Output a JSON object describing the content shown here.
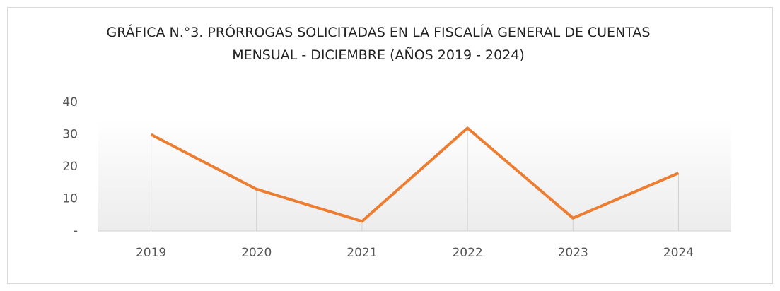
{
  "chart_data": {
    "type": "line",
    "title": "GRÁFICA N.°3. PRÓRROGAS SOLICITADAS EN LA FISCALÍA GENERAL DE CUENTAS",
    "subtitle": "MENSUAL - DICIEMBRE (AÑOS 2019 - 2024)",
    "categories": [
      "2019",
      "2020",
      "2021",
      "2022",
      "2023",
      "2024"
    ],
    "values": [
      30,
      13,
      3,
      32,
      4,
      18
    ],
    "color": "#ed7d31",
    "ylim": [
      0,
      40
    ],
    "yticks": [
      {
        "value": 0,
        "label": "-"
      },
      10,
      20,
      30,
      40
    ],
    "grid": false
  }
}
